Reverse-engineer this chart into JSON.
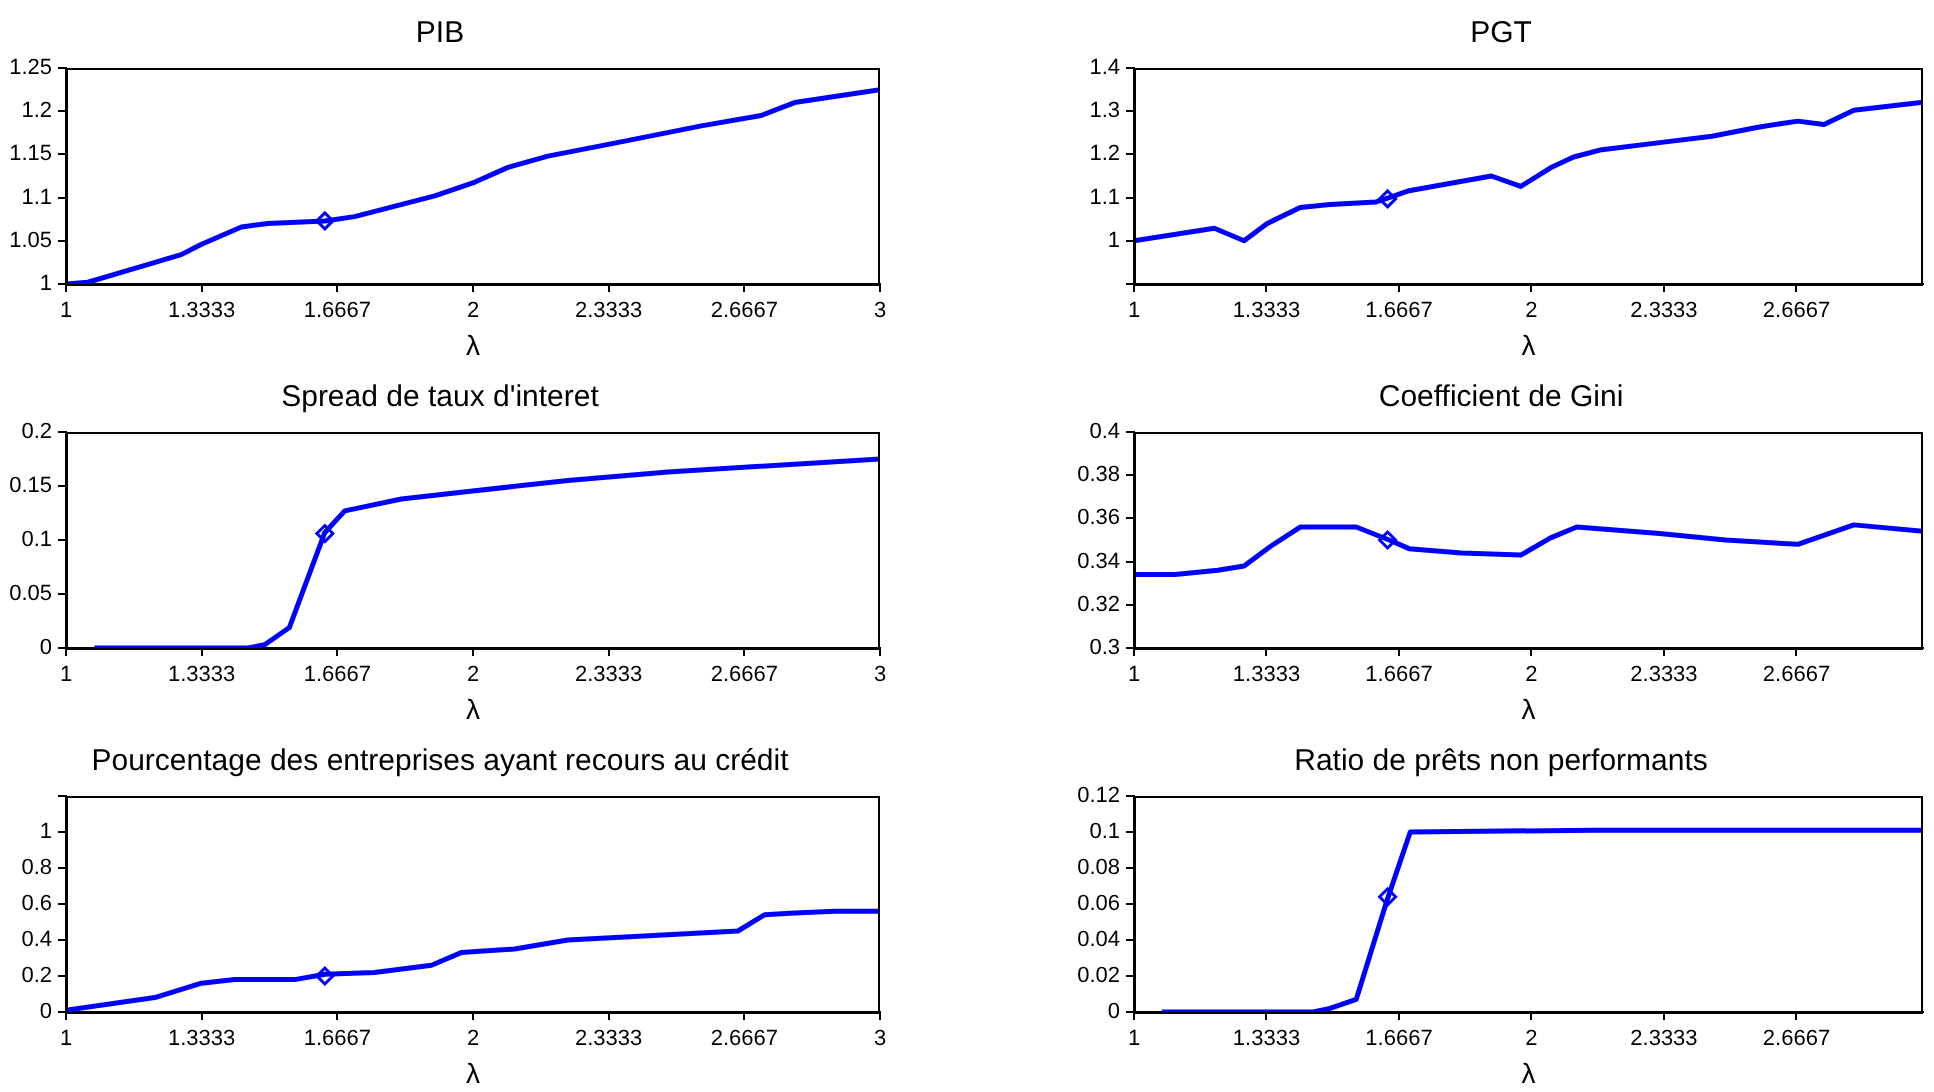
{
  "chart_data": [
    {
      "type": "line",
      "title": "PIB",
      "xlabel": "λ",
      "xlim": [
        1,
        3
      ],
      "xticks": [
        1,
        1.3333,
        1.6667,
        2,
        2.3333,
        2.6667,
        3
      ],
      "ylim": [
        1,
        1.25
      ],
      "yticks": [
        1,
        1.05,
        1.1,
        1.15,
        1.2,
        1.25
      ],
      "series": [
        {
          "type": "line",
          "color": "#0000ff",
          "x": [
            1,
            1.054,
            1.169,
            1.283,
            1.333,
            1.431,
            1.496,
            1.636,
            1.709,
            1.906,
            2.005,
            2.086,
            2.184,
            2.348,
            2.561,
            2.708,
            2.79,
            3
          ],
          "values": [
            1.0,
            1.002,
            1.018,
            1.034,
            1.046,
            1.066,
            1.07,
            1.073,
            1.078,
            1.102,
            1.118,
            1.135,
            1.148,
            1.163,
            1.183,
            1.195,
            1.21,
            1.225
          ]
        },
        {
          "type": "scatter",
          "color": "#0000ff",
          "marker": "diamond",
          "x": [
            1.636
          ],
          "values": [
            1.073
          ]
        }
      ]
    },
    {
      "type": "line",
      "title": "PGT",
      "xlabel": "λ",
      "xlim": [
        1,
        2.985
      ],
      "xticks": [
        1,
        1.3333,
        1.6667,
        2,
        2.3333,
        2.6667
      ],
      "ylim": [
        0.9,
        1.4
      ],
      "yticks": [
        {
          "value": 0.9,
          "label": null
        },
        1,
        1.1,
        1.2,
        1.3,
        1.4
      ],
      "series": [
        {
          "type": "line",
          "color": "#0000ff",
          "x": [
            1,
            1.202,
            1.277,
            1.335,
            1.418,
            1.493,
            1.609,
            1.642,
            1.692,
            1.899,
            1.973,
            2.048,
            2.106,
            2.172,
            2.338,
            2.454,
            2.57,
            2.67,
            2.736,
            2.811,
            2.985
          ],
          "values": [
            1.0,
            1.029,
            1.0,
            1.04,
            1.077,
            1.084,
            1.09,
            1.1,
            1.116,
            1.15,
            1.126,
            1.169,
            1.194,
            1.21,
            1.229,
            1.242,
            1.263,
            1.277,
            1.269,
            1.302,
            1.321
          ]
        },
        {
          "type": "scatter",
          "color": "#0000ff",
          "marker": "diamond",
          "x": [
            1.638
          ],
          "values": [
            1.097
          ]
        }
      ]
    },
    {
      "type": "line",
      "title": "Spread de taux d'interet",
      "xlabel": "λ",
      "xlim": [
        1,
        3
      ],
      "xticks": [
        1,
        1.3333,
        1.6667,
        2,
        2.3333,
        2.6667,
        3
      ],
      "ylim": [
        0,
        0.2
      ],
      "yticks": [
        0,
        0.05,
        0.1,
        0.15,
        0.2
      ],
      "series": [
        {
          "type": "line",
          "color": "#0000ff",
          "x": [
            1.07,
            1.447,
            1.488,
            1.549,
            1.636,
            1.685,
            1.824,
            1.988,
            2.233,
            2.479,
            3
          ],
          "values": [
            0,
            0,
            0.003,
            0.019,
            0.107,
            0.127,
            0.138,
            0.145,
            0.155,
            0.163,
            0.175
          ]
        },
        {
          "type": "scatter",
          "color": "#0000ff",
          "marker": "diamond",
          "x": [
            1.636
          ],
          "values": [
            0.106
          ]
        }
      ]
    },
    {
      "type": "line",
      "title": "Coefficient de Gini",
      "xlabel": "λ",
      "xlim": [
        1,
        2.985
      ],
      "xticks": [
        1,
        1.3333,
        1.6667,
        2,
        2.3333,
        2.6667
      ],
      "ylim": [
        0.3,
        0.4
      ],
      "yticks": [
        0.3,
        0.32,
        0.34,
        0.36,
        0.38,
        0.4
      ],
      "series": [
        {
          "type": "line",
          "color": "#0000ff",
          "x": [
            1,
            1.103,
            1.211,
            1.277,
            1.343,
            1.418,
            1.559,
            1.642,
            1.692,
            1.824,
            1.973,
            2.048,
            2.114,
            2.322,
            2.488,
            2.67,
            2.811,
            2.985
          ],
          "values": [
            0.334,
            0.334,
            0.336,
            0.338,
            0.347,
            0.356,
            0.356,
            0.35,
            0.346,
            0.344,
            0.343,
            0.351,
            0.356,
            0.353,
            0.35,
            0.348,
            0.357,
            0.354
          ]
        },
        {
          "type": "scatter",
          "color": "#0000ff",
          "marker": "diamond",
          "x": [
            1.638
          ],
          "values": [
            0.35
          ]
        }
      ]
    },
    {
      "type": "line",
      "title": "Pourcentage des entreprises ayant recours au crédit",
      "xlabel": "λ",
      "xlim": [
        1,
        3
      ],
      "xticks": [
        1,
        1.3333,
        1.6667,
        2,
        2.3333,
        2.6667,
        3
      ],
      "ylim": [
        0,
        1.2
      ],
      "yticks": [
        0,
        0.2,
        0.4,
        0.6,
        0.8,
        1,
        {
          "value": 1.2,
          "label": null
        }
      ],
      "series": [
        {
          "type": "line",
          "color": "#0000ff",
          "x": [
            1,
            1.218,
            1.333,
            1.414,
            1.562,
            1.636,
            1.758,
            1.898,
            1.971,
            2.102,
            2.233,
            2.397,
            2.651,
            2.716,
            2.79,
            2.889,
            3
          ],
          "values": [
            0.01,
            0.08,
            0.16,
            0.18,
            0.18,
            0.21,
            0.22,
            0.26,
            0.33,
            0.35,
            0.4,
            0.42,
            0.45,
            0.54,
            0.55,
            0.56,
            0.56
          ]
        },
        {
          "type": "scatter",
          "color": "#0000ff",
          "marker": "diamond",
          "x": [
            1.636
          ],
          "values": [
            0.2
          ]
        }
      ]
    },
    {
      "type": "line",
      "title": "Ratio de prêts non performants",
      "xlabel": "λ",
      "xlim": [
        1,
        2.985
      ],
      "xticks": [
        1,
        1.3333,
        1.6667,
        2,
        2.3333,
        2.6667
      ],
      "ylim": [
        0,
        0.12
      ],
      "yticks": [
        0,
        0.02,
        0.04,
        0.06,
        0.08,
        0.1,
        0.12
      ],
      "series": [
        {
          "type": "line",
          "color": "#0000ff",
          "x": [
            1.07,
            1.451,
            1.493,
            1.559,
            1.638,
            1.695,
            2.156,
            2.985
          ],
          "values": [
            0,
            0,
            0.002,
            0.007,
            0.063,
            0.1,
            0.101,
            0.101
          ]
        },
        {
          "type": "scatter",
          "color": "#0000ff",
          "marker": "diamond",
          "x": [
            1.638
          ],
          "values": [
            0.064
          ]
        }
      ]
    }
  ]
}
